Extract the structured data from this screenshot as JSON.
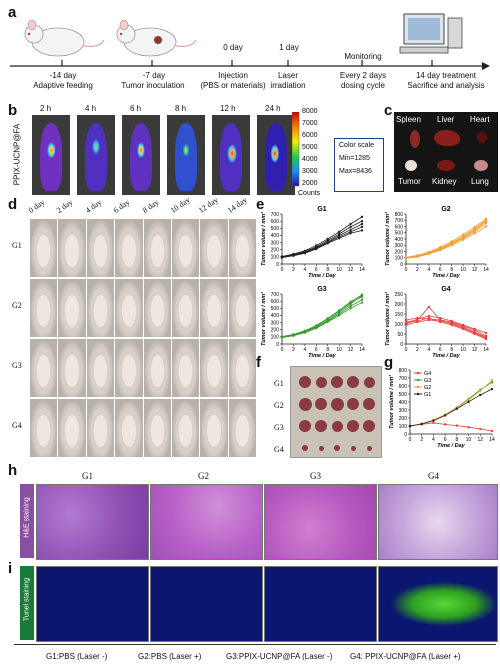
{
  "panels": {
    "a": "a",
    "b": "b",
    "c": "c",
    "d": "d",
    "e": "e",
    "f": "f",
    "g": "g",
    "h": "h",
    "i": "i"
  },
  "timeline": {
    "steps": [
      {
        "day": "-14 day",
        "desc": "Adaptive feeding"
      },
      {
        "day": "-7 day",
        "desc": "Tumor  inoculation"
      },
      {
        "day": "0 day",
        "desc": "Injection\n(PBS or materials)"
      },
      {
        "day": "1 day",
        "desc": "Laser\nirradiation"
      },
      {
        "day": "Monitoring",
        "desc": "Every 2 days\ndosing cycle"
      },
      {
        "day": "",
        "desc": "14 day treatment\nSacrifice and analysis"
      }
    ]
  },
  "imaging": {
    "row_label": "PPIX-UCNP@FA",
    "times": [
      "2 h",
      "4 h",
      "6 h",
      "8 h",
      "12 h",
      "24 h"
    ],
    "colorbar_ticks": [
      "8000",
      "7000",
      "6000",
      "5000",
      "4000",
      "3000",
      "2000"
    ],
    "colorbar_unit": "Counts",
    "colorscale_title": "Color scale",
    "colorscale_min": "Min=1285",
    "colorscale_max": "Max=8436"
  },
  "organs": [
    "Spleen",
    "Liver",
    "Heart",
    "Tumor",
    "Kidney",
    "Lung"
  ],
  "photo_grid": {
    "days": [
      "0 day",
      "2 day",
      "4 day",
      "6 day",
      "8 day",
      "10 day",
      "12 day",
      "14 day"
    ],
    "groups": [
      "G1",
      "G2",
      "G3",
      "G4"
    ]
  },
  "tumor_groups": [
    "G1",
    "G2",
    "G3",
    "G4"
  ],
  "histology": {
    "groups": [
      "G1",
      "G2",
      "G3",
      "G4"
    ],
    "row_h": "H&E staining",
    "row_i": "Tunel staining"
  },
  "legend_footer": [
    "G1:PBS (Laser -)",
    "G2:PBS (Laser +)",
    "G3:PPIX-UCNP@FA (Laser -)",
    "G4: PPIX-UCNP@FA (Laser +)"
  ],
  "chart_data": [
    {
      "type": "line",
      "panel": "e",
      "title": "G1",
      "xlabel": "Time / Day",
      "ylabel": "Tumor volume / mm³",
      "x": [
        0,
        2,
        4,
        6,
        8,
        10,
        12,
        14
      ],
      "xlim": [
        0,
        14
      ],
      "yticks": [
        0,
        100,
        200,
        300,
        400,
        500,
        600,
        700
      ],
      "ylim": [
        0,
        700
      ],
      "color": "#222222",
      "series": [
        {
          "values": [
            95,
            120,
            160,
            220,
            300,
            380,
            450,
            520
          ]
        },
        {
          "values": [
            100,
            130,
            175,
            240,
            330,
            420,
            520,
            600
          ]
        },
        {
          "values": [
            90,
            115,
            150,
            210,
            290,
            360,
            430,
            470
          ]
        },
        {
          "values": [
            105,
            140,
            185,
            260,
            350,
            450,
            560,
            660
          ]
        },
        {
          "values": [
            98,
            125,
            165,
            230,
            310,
            400,
            480,
            560
          ]
        }
      ]
    },
    {
      "type": "line",
      "panel": "e",
      "title": "G2",
      "xlabel": "Time / Day",
      "ylabel": "Tumor volume / mm³",
      "x": [
        0,
        2,
        4,
        6,
        8,
        10,
        12,
        14
      ],
      "xlim": [
        0,
        14
      ],
      "yticks": [
        0,
        100,
        200,
        300,
        400,
        500,
        600,
        700,
        800
      ],
      "ylim": [
        0,
        800
      ],
      "color": "#f0a030",
      "series": [
        {
          "values": [
            100,
            130,
            180,
            250,
            340,
            440,
            560,
            700
          ]
        },
        {
          "values": [
            95,
            120,
            170,
            230,
            320,
            410,
            520,
            650
          ]
        },
        {
          "values": [
            105,
            140,
            190,
            270,
            360,
            470,
            590,
            720
          ]
        },
        {
          "values": [
            90,
            115,
            160,
            220,
            300,
            390,
            490,
            600
          ]
        },
        {
          "values": [
            98,
            125,
            175,
            240,
            330,
            430,
            540,
            680
          ]
        }
      ]
    },
    {
      "type": "line",
      "panel": "e",
      "title": "G3",
      "xlabel": "Time / Day",
      "ylabel": "Tumor volume / mm³",
      "x": [
        0,
        2,
        4,
        6,
        8,
        10,
        12,
        14
      ],
      "xlim": [
        0,
        14
      ],
      "yticks": [
        0,
        100,
        200,
        300,
        400,
        500,
        600,
        700
      ],
      "ylim": [
        0,
        700
      ],
      "color": "#3a9a30",
      "series": [
        {
          "values": [
            95,
            125,
            170,
            240,
            330,
            440,
            560,
            680
          ]
        },
        {
          "values": [
            100,
            130,
            180,
            250,
            350,
            460,
            580,
            660
          ]
        },
        {
          "values": [
            90,
            115,
            160,
            220,
            310,
            400,
            500,
            580
          ]
        },
        {
          "values": [
            105,
            135,
            185,
            260,
            360,
            470,
            590,
            690
          ]
        },
        {
          "values": [
            98,
            120,
            165,
            235,
            320,
            420,
            530,
            620
          ]
        }
      ]
    },
    {
      "type": "line",
      "panel": "e",
      "title": "G4",
      "xlabel": "Time / Day",
      "ylabel": "Tumor volume / mm³",
      "x": [
        0,
        2,
        4,
        6,
        8,
        10,
        12,
        14
      ],
      "xlim": [
        0,
        14
      ],
      "yticks": [
        0,
        50,
        100,
        150,
        200,
        250
      ],
      "ylim": [
        0,
        250
      ],
      "color": "#e84040",
      "series": [
        {
          "values": [
            110,
            120,
            185,
            120,
            110,
            90,
            70,
            40
          ]
        },
        {
          "values": [
            100,
            125,
            140,
            130,
            115,
            95,
            75,
            55
          ]
        },
        {
          "values": [
            95,
            110,
            120,
            115,
            105,
            85,
            60,
            35
          ]
        },
        {
          "values": [
            120,
            130,
            125,
            120,
            100,
            80,
            55,
            30
          ]
        },
        {
          "values": [
            105,
            115,
            130,
            110,
            95,
            75,
            50,
            25
          ]
        }
      ]
    },
    {
      "type": "line",
      "panel": "g",
      "xlabel": "Time / Day",
      "ylabel": "Tumor volume / mm³",
      "x": [
        0,
        2,
        4,
        6,
        8,
        10,
        12,
        14
      ],
      "xlim": [
        0,
        14
      ],
      "yticks": [
        0,
        100,
        200,
        300,
        400,
        500,
        600,
        700,
        800
      ],
      "ylim": [
        0,
        800
      ],
      "legend": "top-left",
      "series": [
        {
          "name": "G4",
          "color": "#e84040",
          "values": [
            105,
            120,
            140,
            119,
            105,
            85,
            62,
            37
          ]
        },
        {
          "name": "G3",
          "color": "#3a9a30",
          "values": [
            98,
            125,
            172,
            241,
            334,
            438,
            552,
            646
          ]
        },
        {
          "name": "G2",
          "color": "#f0a030",
          "values": [
            98,
            126,
            175,
            242,
            330,
            428,
            540,
            670
          ]
        },
        {
          "name": "G1",
          "color": "#222222",
          "values": [
            98,
            126,
            167,
            232,
            316,
            402,
            488,
            562
          ]
        }
      ]
    }
  ]
}
